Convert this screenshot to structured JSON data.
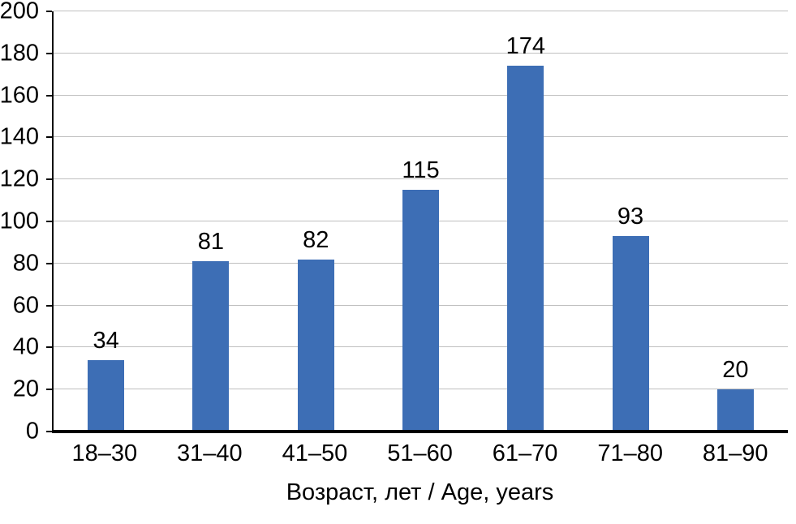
{
  "chart_data": {
    "type": "bar",
    "categories": [
      "18–30",
      "31–40",
      "41–50",
      "51–60",
      "61–70",
      "71–80",
      "81–90"
    ],
    "values": [
      34,
      81,
      82,
      115,
      174,
      93,
      20
    ],
    "title": "",
    "xlabel": "Возраст, лет / Age, years",
    "ylabel": "",
    "ylim": [
      0,
      200
    ],
    "ytick_step": 20,
    "legend": "none",
    "grid": "horizontal",
    "bar_color": "#3d6eb5",
    "gridline_color": "#bfbfbf",
    "axis_color": "#000000",
    "background_color": "#ffffff"
  }
}
